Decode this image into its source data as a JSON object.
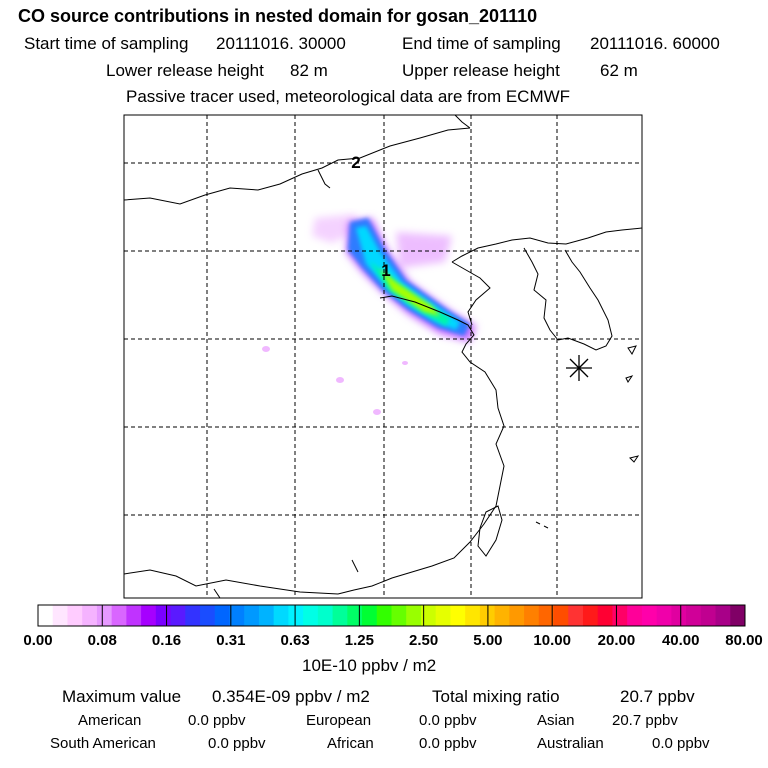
{
  "header": {
    "title": "CO  source contributions in nested domain for gosan_201110",
    "start_label": "Start time of sampling",
    "start_value": "20111016. 30000",
    "end_label": "End time of sampling",
    "end_value": "20111016. 60000",
    "lower_label": "Lower release height",
    "lower_value": "82 m",
    "upper_label": "Upper release height",
    "upper_value": "62 m",
    "tracer_note": "Passive tracer used, meteorological data are from ECMWF"
  },
  "map": {
    "markers": [
      {
        "label": "1"
      },
      {
        "label": "2"
      }
    ],
    "receptor_icon": "asterisk-receptor-icon"
  },
  "colorbar": {
    "tick_labels": [
      "0.00",
      "0.08",
      "0.16",
      "0.31",
      "0.63",
      "1.25",
      "2.50",
      "5.00",
      "10.00",
      "20.00",
      "40.00",
      "80.00"
    ],
    "units": "10E-10 ppbv / m2",
    "colors": [
      "#ffffff",
      "#ffe6ff",
      "#ffccff",
      "#f5b3ff",
      "#e699ff",
      "#d966ff",
      "#c033ff",
      "#a600ff",
      "#7a00ff",
      "#5a1aff",
      "#3333ff",
      "#1a4dff",
      "#0066ff",
      "#0080ff",
      "#0099ff",
      "#00b3ff",
      "#00d9ff",
      "#00f2ff",
      "#00ffe6",
      "#00ffcc",
      "#00ff99",
      "#00ff66",
      "#00ff33",
      "#33ff00",
      "#66ff00",
      "#99ff00",
      "#ccff00",
      "#e6ff00",
      "#ffff00",
      "#ffe600",
      "#ffcc00",
      "#ffb300",
      "#ff9900",
      "#ff8000",
      "#ff6600",
      "#ff4d00",
      "#ff3333",
      "#ff1a1a",
      "#ff0033",
      "#ff0066",
      "#ff0099",
      "#ff00aa",
      "#f000aa",
      "#e000a0",
      "#d00098",
      "#c00090",
      "#a80088",
      "#800066"
    ]
  },
  "stats": {
    "max_label": "Maximum value",
    "max_value": "0.354E-09 ppbv / m2",
    "total_label": "Total mixing ratio",
    "total_value": "20.7 ppbv",
    "regions": [
      {
        "name": "American",
        "value": "0.0 ppbv"
      },
      {
        "name": "European",
        "value": "0.0 ppbv"
      },
      {
        "name": "Asian",
        "value": "20.7 ppbv"
      },
      {
        "name": "South American",
        "value": "0.0 ppbv"
      },
      {
        "name": "African",
        "value": "0.0 ppbv"
      },
      {
        "name": "Australian",
        "value": "0.0 ppbv"
      }
    ]
  }
}
